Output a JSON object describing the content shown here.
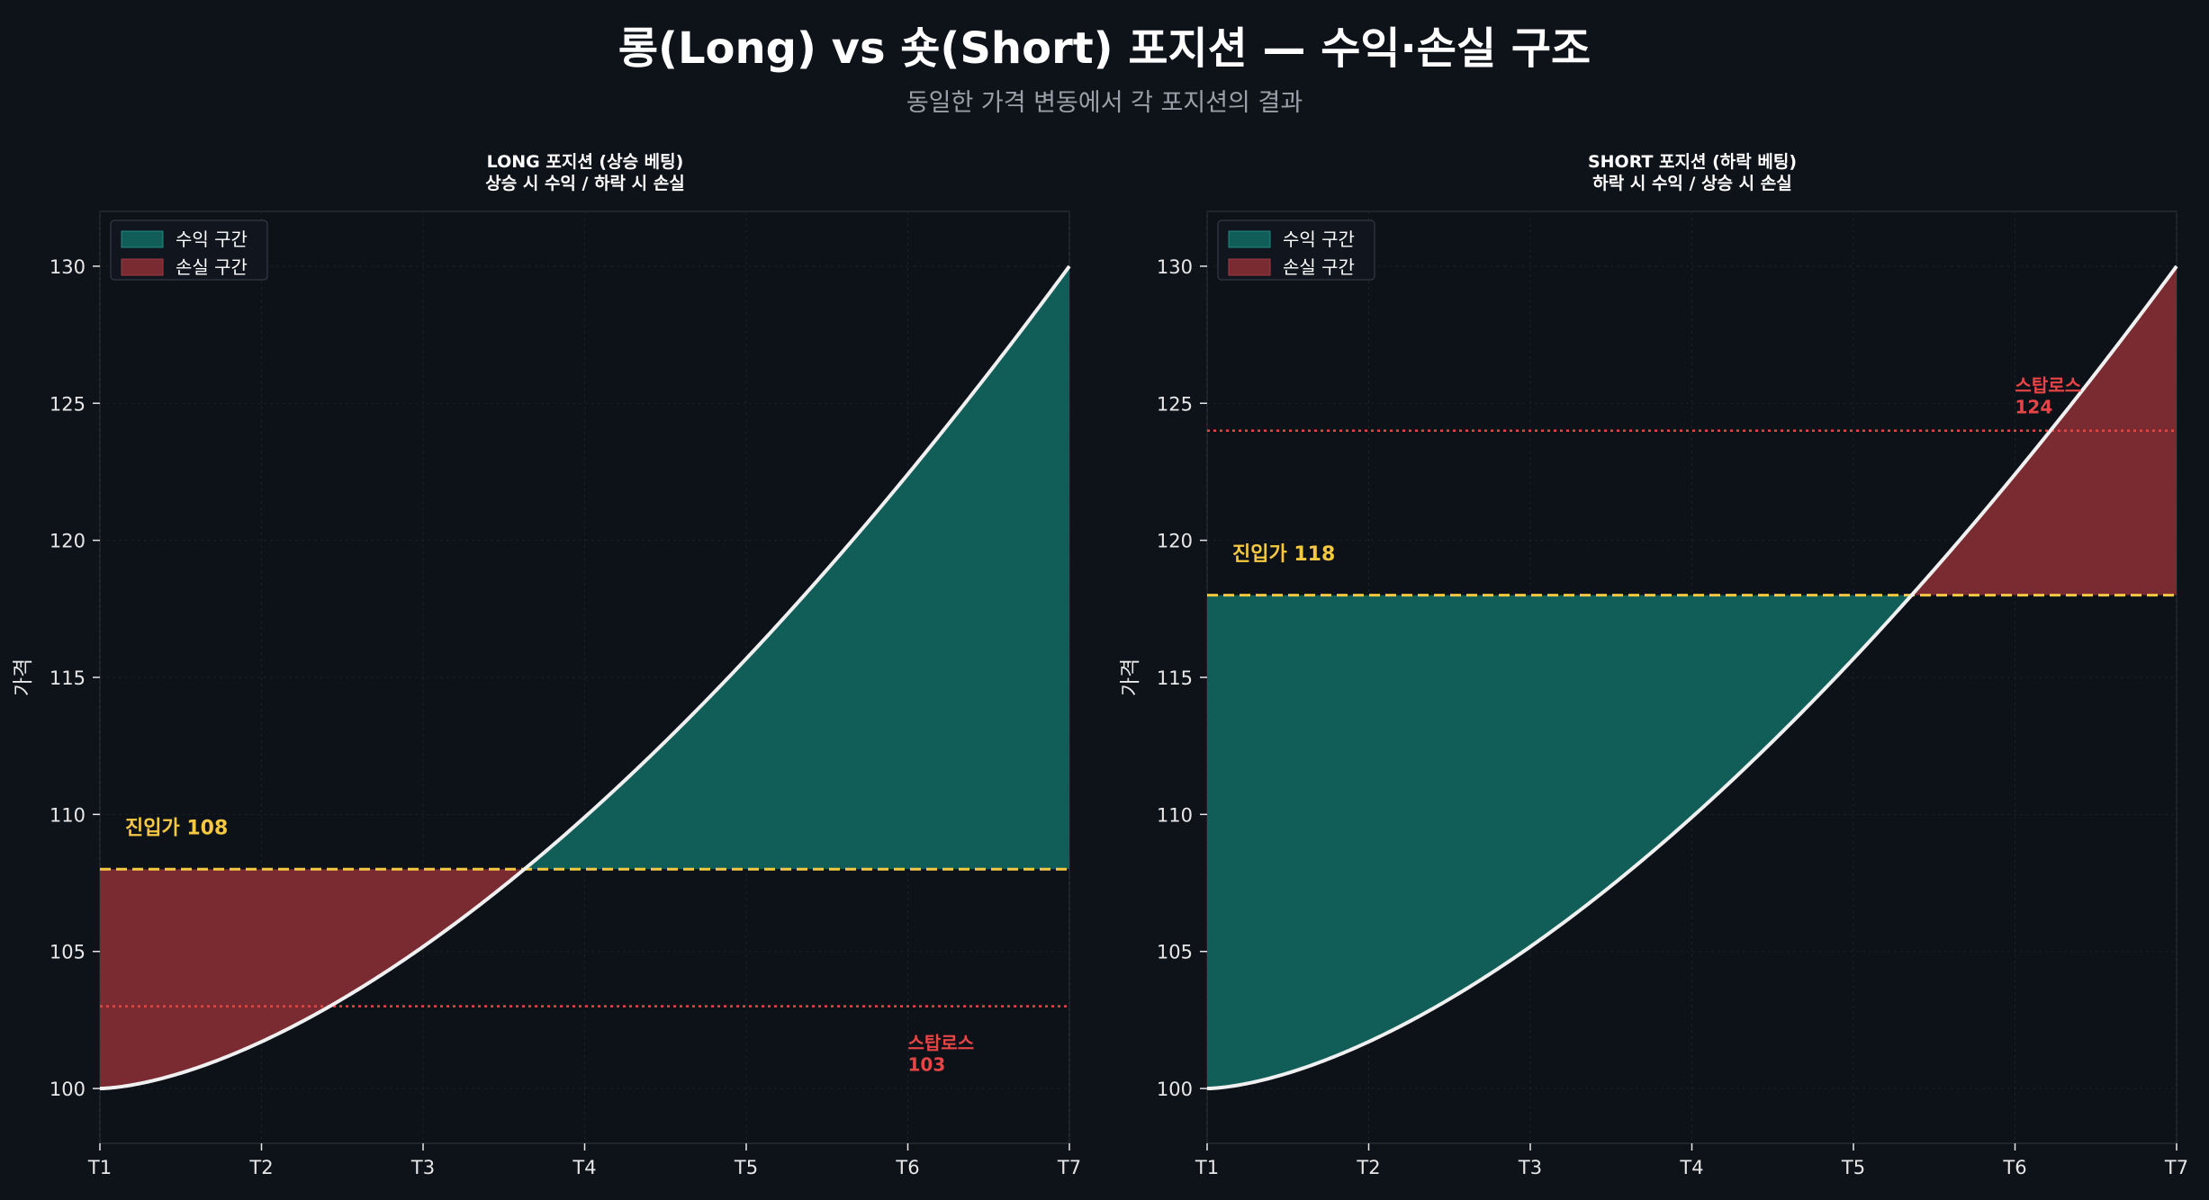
{
  "page": {
    "title": "롱(Long) vs 숏(Short) 포지션 — 수익·손실 구조",
    "subtitle": "동일한 가격 변동에서 각 포지션의 결과"
  },
  "colors": {
    "background": "#0e1219",
    "plot_background": "#0d1118",
    "profit_fill": "#115e59",
    "loss_fill": "#7a2a31",
    "price_line": "#f0f0f0",
    "entry_line": "#f5c842",
    "stop_line": "#e64545",
    "grid": "#1b2029",
    "axis_text": "#e8e8e8"
  },
  "chart_data": [
    {
      "type": "area",
      "position": "LONG",
      "title": "LONG 포지션 (상승 베팅)",
      "subtitle": "상승 시 수익 / 하락 시 손실",
      "xlabel": "",
      "ylabel": "가격",
      "categories": [
        "T1",
        "T2",
        "T3",
        "T4",
        "T5",
        "T6",
        "T7"
      ],
      "x": [
        1,
        2,
        3,
        4,
        5,
        6,
        7
      ],
      "price_curve": "100 + 30·((t−1)/6)^1.6",
      "ylim": [
        98,
        132
      ],
      "yticks": [
        100,
        105,
        110,
        115,
        120,
        125,
        130
      ],
      "entry_price": 108,
      "entry_label": "진입가 108",
      "stop_loss": 103,
      "stop_label_line1": "스탑로스",
      "stop_label_line2": "103",
      "stop_label_anchor": [
        6,
        100.9
      ],
      "legend": {
        "placement": "top-left",
        "entries": [
          "수익 구간",
          "손실 구간"
        ]
      },
      "grid": true
    },
    {
      "type": "area",
      "position": "SHORT",
      "title": "SHORT 포지션 (하락 베팅)",
      "subtitle": "하락 시 수익 / 상승 시 손실",
      "xlabel": "",
      "ylabel": "가격",
      "categories": [
        "T1",
        "T2",
        "T3",
        "T4",
        "T5",
        "T6",
        "T7"
      ],
      "x": [
        1,
        2,
        3,
        4,
        5,
        6,
        7
      ],
      "price_curve": "100 + 30·((t−1)/6)^1.6",
      "ylim": [
        98,
        132
      ],
      "yticks": [
        100,
        105,
        110,
        115,
        120,
        125,
        130
      ],
      "entry_price": 118,
      "entry_label": "진입가 118",
      "stop_loss": 124,
      "stop_label_line1": "스탑로스",
      "stop_label_line2": "124",
      "stop_label_anchor": [
        6,
        124.9
      ],
      "legend": {
        "placement": "top-left",
        "entries": [
          "수익 구간",
          "손실 구간"
        ]
      },
      "grid": true
    }
  ]
}
